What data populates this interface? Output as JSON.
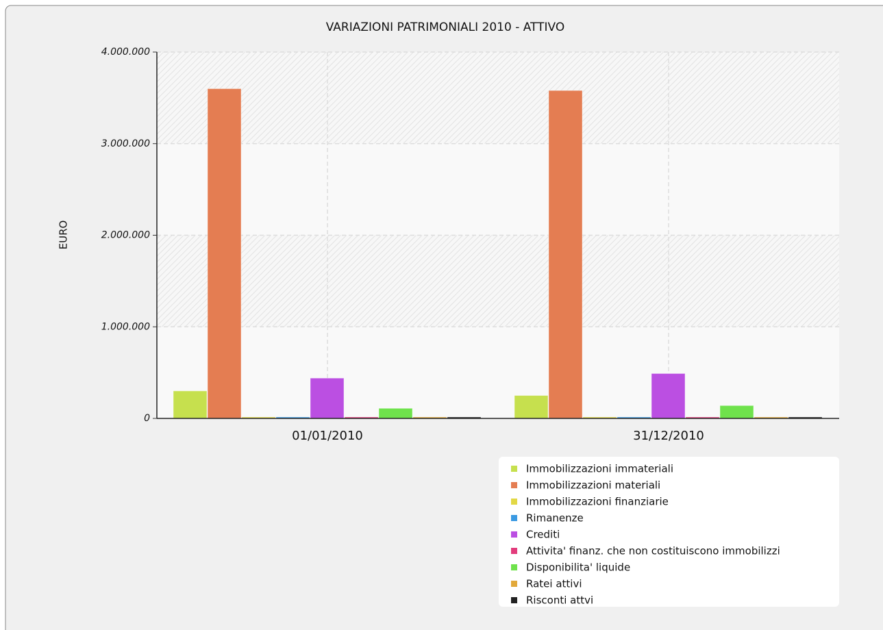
{
  "chart_data": {
    "type": "bar",
    "title": "VARIAZIONI PATRIMONIALI 2010 - ATTIVO",
    "y_label": "EURO",
    "categories": [
      "01/01/2010",
      "31/12/2010"
    ],
    "series": [
      {
        "name": "Immobilizzazioni immateriali",
        "color": "#c6e04e",
        "values": [
          300000,
          250000
        ]
      },
      {
        "name": "Immobilizzazioni materiali",
        "color": "#e47d52",
        "values": [
          3600000,
          3580000
        ]
      },
      {
        "name": "Immobilizzazioni finanziarie",
        "color": "#e2d845",
        "values": [
          10000,
          10000
        ]
      },
      {
        "name": "Rimanenze",
        "color": "#3b9ae2",
        "values": [
          5000,
          5000
        ]
      },
      {
        "name": "Crediti",
        "color": "#bb4fe2",
        "values": [
          440000,
          490000
        ]
      },
      {
        "name": "Attivita' finanz. che non costituiscono immobilizzi",
        "color": "#e23c7c",
        "values": [
          5000,
          5000
        ]
      },
      {
        "name": "Disponibilita' liquide",
        "color": "#6fe24c",
        "values": [
          110000,
          140000
        ]
      },
      {
        "name": "Ratei attivi",
        "color": "#e2a93b",
        "values": [
          5000,
          5000
        ]
      },
      {
        "name": "Risconti attvi",
        "color": "#222222",
        "values": [
          10000,
          10000
        ]
      }
    ],
    "ylim": [
      0,
      4000000
    ],
    "yticks": [
      0,
      {
        "value": 1000000,
        "label": "1.000.000"
      },
      {
        "value": 2000000,
        "label": "2.000.000"
      },
      {
        "value": 3000000,
        "label": "3.000.000"
      },
      {
        "value": 4000000,
        "label": "4.000.000"
      }
    ],
    "grid": true
  }
}
